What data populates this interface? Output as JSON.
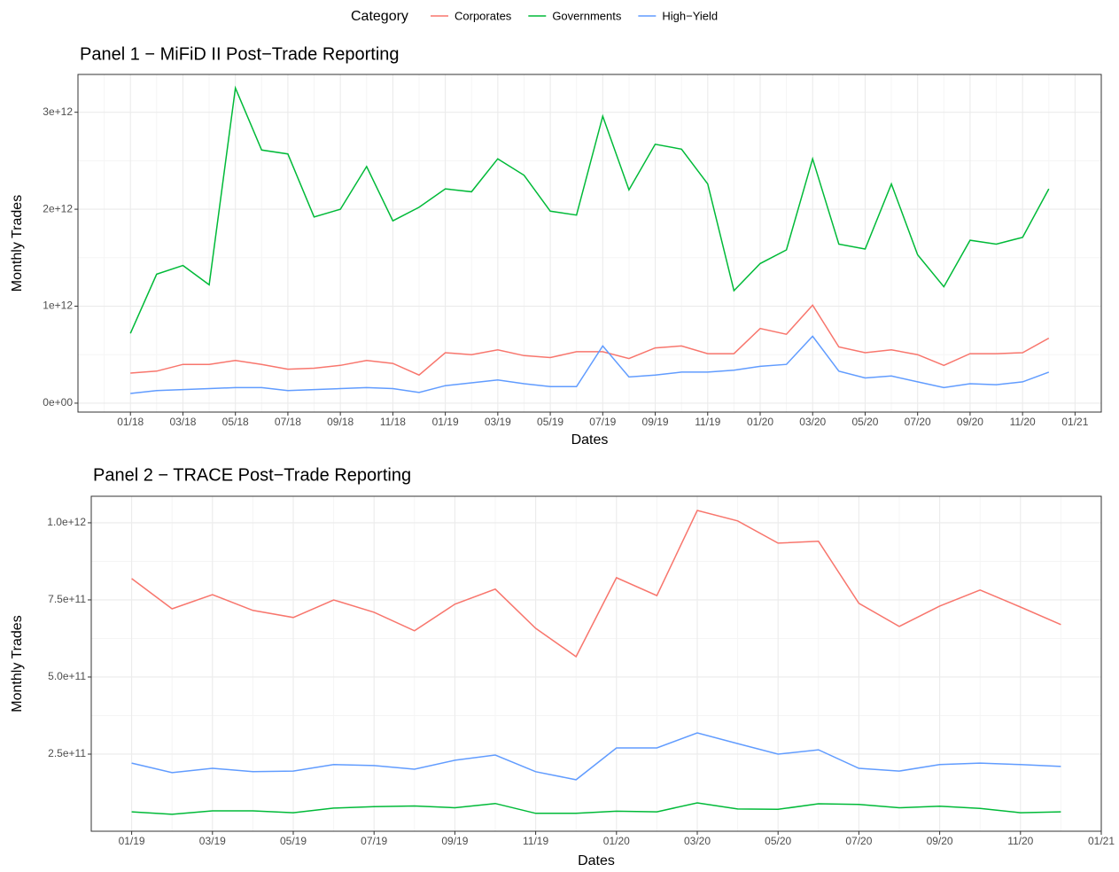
{
  "legend": {
    "title": "Category"
  },
  "chart_data": [
    {
      "type": "line",
      "title": "Panel 1 − MiFiD II Post−Trade Reporting",
      "x_label": "Dates",
      "y_label": "Monthly Trades",
      "x": [
        "2018-01",
        "2018-02",
        "2018-03",
        "2018-04",
        "2018-05",
        "2018-06",
        "2018-07",
        "2018-08",
        "2018-09",
        "2018-10",
        "2018-11",
        "2018-12",
        "2019-01",
        "2019-02",
        "2019-03",
        "2019-04",
        "2019-05",
        "2019-06",
        "2019-07",
        "2019-08",
        "2019-09",
        "2019-10",
        "2019-11",
        "2019-12",
        "2020-01",
        "2020-02",
        "2020-03",
        "2020-04",
        "2020-05",
        "2020-06",
        "2020-07",
        "2020-08",
        "2020-09",
        "2020-10",
        "2020-11",
        "2020-12"
      ],
      "series": [
        {
          "name": "Corporates",
          "color": "#F8766D",
          "values": [
            310000000000.0,
            330000000000.0,
            400000000000.0,
            400000000000.0,
            440000000000.0,
            400000000000.0,
            350000000000.0,
            360000000000.0,
            390000000000.0,
            440000000000.0,
            410000000000.0,
            290000000000.0,
            520000000000.0,
            500000000000.0,
            550000000000.0,
            490000000000.0,
            470000000000.0,
            530000000000.0,
            530000000000.0,
            460000000000.0,
            570000000000.0,
            590000000000.0,
            510000000000.0,
            510000000000.0,
            770000000000.0,
            710000000000.0,
            1010000000000.0,
            580000000000.0,
            520000000000.0,
            550000000000.0,
            500000000000.0,
            390000000000.0,
            510000000000.0,
            510000000000.0,
            520000000000.0,
            670000000000.0
          ]
        },
        {
          "name": "Governments",
          "color": "#00BA38",
          "values": [
            720000000000.0,
            1330000000000.0,
            1420000000000.0,
            1220000000000.0,
            3250000000000.0,
            2610000000000.0,
            2570000000000.0,
            1920000000000.0,
            2000000000000.0,
            2440000000000.0,
            1880000000000.0,
            2020000000000.0,
            2210000000000.0,
            2180000000000.0,
            2520000000000.0,
            2350000000000.0,
            1980000000000.0,
            1940000000000.0,
            2960000000000.0,
            2200000000000.0,
            2670000000000.0,
            2620000000000.0,
            2260000000000.0,
            1160000000000.0,
            1440000000000.0,
            1580000000000.0,
            2520000000000.0,
            1640000000000.0,
            1590000000000.0,
            2260000000000.0,
            1530000000000.0,
            1200000000000.0,
            1680000000000.0,
            1640000000000.0,
            1710000000000.0,
            2210000000000.0
          ]
        },
        {
          "name": "High−Yield",
          "color": "#619CFF",
          "values": [
            100000000000.0,
            130000000000.0,
            140000000000.0,
            150000000000.0,
            160000000000.0,
            160000000000.0,
            130000000000.0,
            140000000000.0,
            150000000000.0,
            160000000000.0,
            150000000000.0,
            110000000000.0,
            180000000000.0,
            210000000000.0,
            240000000000.0,
            200000000000.0,
            170000000000.0,
            170000000000.0,
            590000000000.0,
            270000000000.0,
            290000000000.0,
            320000000000.0,
            320000000000.0,
            340000000000.0,
            380000000000.0,
            400000000000.0,
            690000000000.0,
            330000000000.0,
            260000000000.0,
            280000000000.0,
            220000000000.0,
            160000000000.0,
            200000000000.0,
            190000000000.0,
            220000000000.0,
            320000000000.0
          ]
        }
      ],
      "xlim": [
        "2017-11",
        "2021-02"
      ],
      "xticks": [
        {
          "value": "2018-01",
          "label": "01/18"
        },
        {
          "value": "2018-03",
          "label": "03/18"
        },
        {
          "value": "2018-05",
          "label": "05/18"
        },
        {
          "value": "2018-07",
          "label": "07/18"
        },
        {
          "value": "2018-09",
          "label": "09/18"
        },
        {
          "value": "2018-11",
          "label": "11/18"
        },
        {
          "value": "2019-01",
          "label": "01/19"
        },
        {
          "value": "2019-03",
          "label": "03/19"
        },
        {
          "value": "2019-05",
          "label": "05/19"
        },
        {
          "value": "2019-07",
          "label": "07/19"
        },
        {
          "value": "2019-09",
          "label": "09/19"
        },
        {
          "value": "2019-11",
          "label": "11/19"
        },
        {
          "value": "2020-01",
          "label": "01/20"
        },
        {
          "value": "2020-03",
          "label": "03/20"
        },
        {
          "value": "2020-05",
          "label": "05/20"
        },
        {
          "value": "2020-07",
          "label": "07/20"
        },
        {
          "value": "2020-09",
          "label": "09/20"
        },
        {
          "value": "2020-11",
          "label": "11/20"
        },
        {
          "value": "2021-01",
          "label": "01/21"
        }
      ],
      "ylim": [
        -92000000000.0,
        3390000000000.0
      ],
      "yticks": [
        {
          "value": 0,
          "label": "0e+00"
        },
        {
          "value": 1000000000000.0,
          "label": "1e+12"
        },
        {
          "value": 2000000000000.0,
          "label": "2e+12"
        },
        {
          "value": 3000000000000.0,
          "label": "3e+12"
        }
      ],
      "grid": true
    },
    {
      "type": "line",
      "title": "Panel 2 − TRACE Post−Trade Reporting",
      "x_label": "Dates",
      "y_label": "Monthly Trades",
      "x": [
        "2019-01",
        "2019-02",
        "2019-03",
        "2019-04",
        "2019-05",
        "2019-06",
        "2019-07",
        "2019-08",
        "2019-09",
        "2019-10",
        "2019-11",
        "2019-12",
        "2020-01",
        "2020-02",
        "2020-03",
        "2020-04",
        "2020-05",
        "2020-06",
        "2020-07",
        "2020-08",
        "2020-09",
        "2020-10",
        "2020-11",
        "2020-12"
      ],
      "series": [
        {
          "name": "Corporates",
          "color": "#F8766D",
          "values": [
            819000000000.0,
            721000000000.0,
            767000000000.0,
            716000000000.0,
            693000000000.0,
            750000000000.0,
            710000000000.0,
            650000000000.0,
            736000000000.0,
            785000000000.0,
            658000000000.0,
            566000000000.0,
            822000000000.0,
            764000000000.0,
            1040000000000.0,
            1006000000000.0,
            934000000000.0,
            940000000000.0,
            739000000000.0,
            664000000000.0,
            730000000000.0,
            782000000000.0,
            727000000000.0,
            670000000000.0
          ]
        },
        {
          "name": "Governments",
          "color": "#00BA38",
          "values": [
            63000000000.0,
            55000000000.0,
            66000000000.0,
            66000000000.0,
            60000000000.0,
            75000000000.0,
            80000000000.0,
            82000000000.0,
            76000000000.0,
            90000000000.0,
            58000000000.0,
            58000000000.0,
            65000000000.0,
            63000000000.0,
            92000000000.0,
            72000000000.0,
            71000000000.0,
            89000000000.0,
            87000000000.0,
            76000000000.0,
            81000000000.0,
            74000000000.0,
            60000000000.0,
            63000000000.0
          ]
        },
        {
          "name": "High−Yield",
          "color": "#619CFF",
          "values": [
            221000000000.0,
            190000000000.0,
            204000000000.0,
            193000000000.0,
            195000000000.0,
            216000000000.0,
            213000000000.0,
            201000000000.0,
            230000000000.0,
            247000000000.0,
            193000000000.0,
            167000000000.0,
            270000000000.0,
            270000000000.0,
            319000000000.0,
            284000000000.0,
            250000000000.0,
            264000000000.0,
            204000000000.0,
            195000000000.0,
            216000000000.0,
            221000000000.0,
            216000000000.0,
            210000000000.0
          ]
        }
      ],
      "xlim": [
        "2018-12",
        "2021-01"
      ],
      "xticks": [
        {
          "value": "2019-01",
          "label": "01/19"
        },
        {
          "value": "2019-03",
          "label": "03/19"
        },
        {
          "value": "2019-05",
          "label": "05/19"
        },
        {
          "value": "2019-07",
          "label": "07/19"
        },
        {
          "value": "2019-09",
          "label": "09/19"
        },
        {
          "value": "2019-11",
          "label": "11/19"
        },
        {
          "value": "2020-01",
          "label": "01/20"
        },
        {
          "value": "2020-03",
          "label": "03/20"
        },
        {
          "value": "2020-05",
          "label": "05/20"
        },
        {
          "value": "2020-07",
          "label": "07/20"
        },
        {
          "value": "2020-09",
          "label": "09/20"
        },
        {
          "value": "2020-11",
          "label": "11/20"
        },
        {
          "value": "2021-01",
          "label": "01/21"
        }
      ],
      "ylim": [
        0,
        1086000000000.0
      ],
      "yticks": [
        {
          "value": 250000000000.0,
          "label": "2.5e+11"
        },
        {
          "value": 500000000000.0,
          "label": "5.0e+11"
        },
        {
          "value": 750000000000.0,
          "label": "7.5e+11"
        },
        {
          "value": 1000000000000.0,
          "label": "1.0e+12"
        }
      ],
      "grid": true
    }
  ]
}
